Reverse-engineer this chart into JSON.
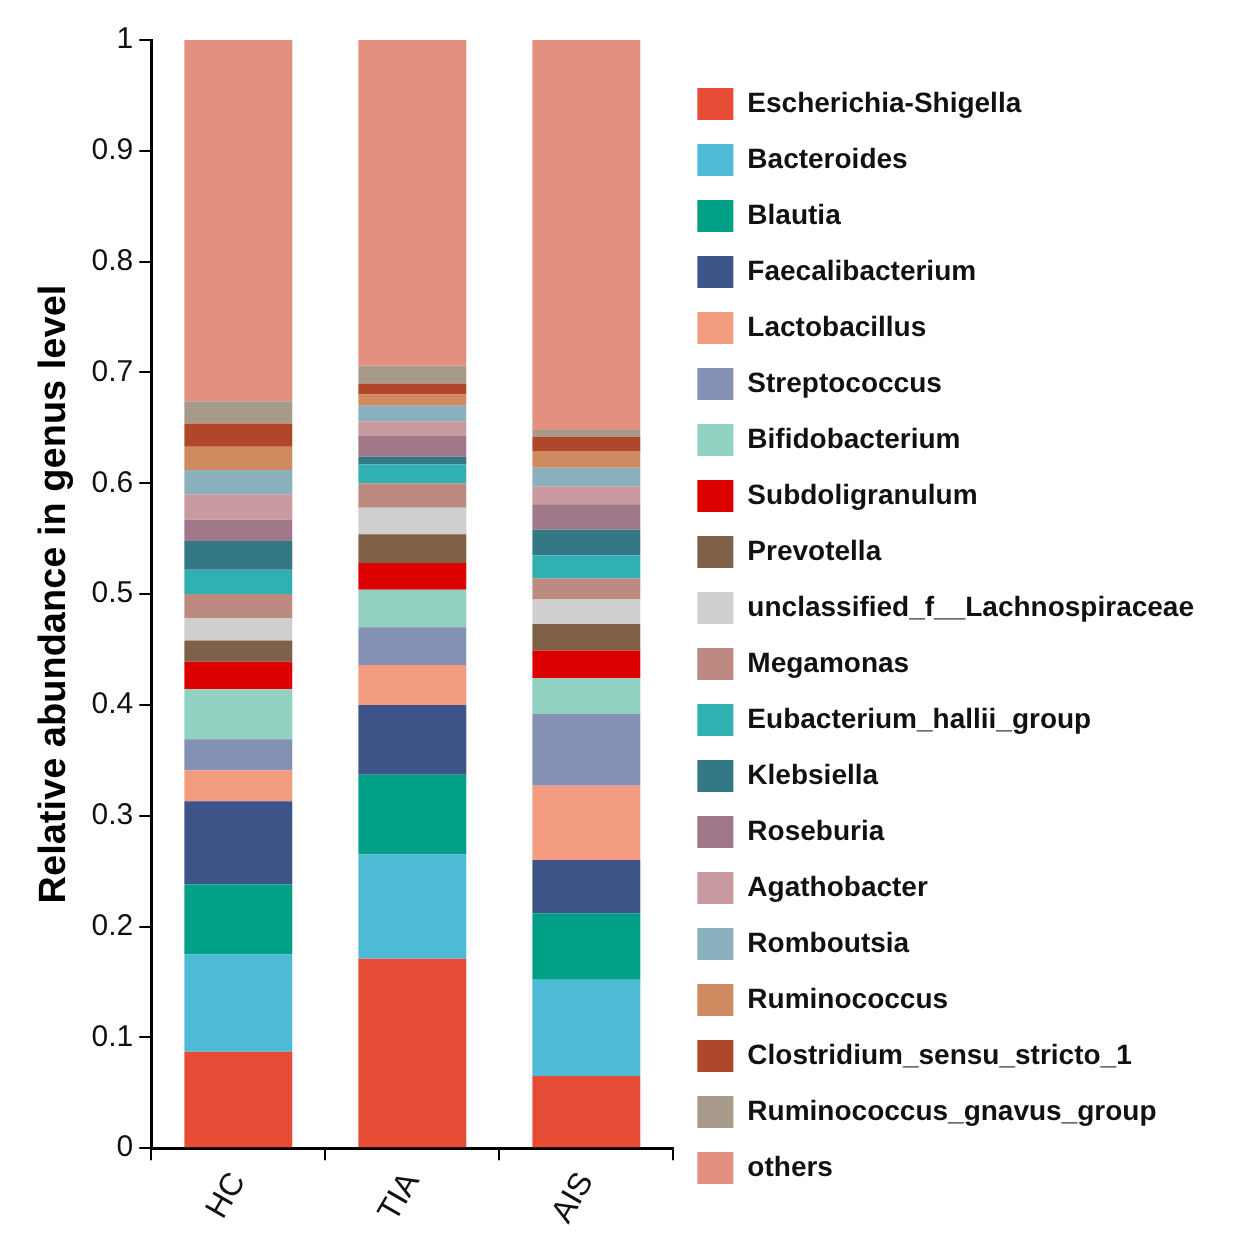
{
  "chart_data": {
    "type": "bar",
    "stacked": true,
    "ylabel": "Relative abundance in genus level",
    "categories": [
      "HC",
      "TIA",
      "AIS"
    ],
    "ylim": [
      0,
      1
    ],
    "yticks": [
      0,
      0.1,
      0.2,
      0.3,
      0.4,
      0.5,
      0.6,
      0.7,
      0.8,
      0.9,
      1
    ],
    "grid": false,
    "legend": "right",
    "series": [
      {
        "name": "Escherichia-Shigella",
        "color": "#e64b35",
        "values": [
          0.087,
          0.171,
          0.065
        ]
      },
      {
        "name": "Bacteroides",
        "color": "#4dbbd5",
        "values": [
          0.088,
          0.094,
          0.087
        ]
      },
      {
        "name": "Blautia",
        "color": "#00a087",
        "values": [
          0.063,
          0.072,
          0.06
        ]
      },
      {
        "name": "Faecalibacterium",
        "color": "#3c5488",
        "values": [
          0.075,
          0.063,
          0.048
        ]
      },
      {
        "name": "Lactobacillus",
        "color": "#f39b7f",
        "values": [
          0.028,
          0.036,
          0.067
        ]
      },
      {
        "name": "Streptococcus",
        "color": "#8491b4",
        "values": [
          0.028,
          0.034,
          0.065
        ]
      },
      {
        "name": "Bifidobacterium",
        "color": "#91d1c2",
        "values": [
          0.045,
          0.034,
          0.032
        ]
      },
      {
        "name": "Subdoligranulum",
        "color": "#dc0000",
        "values": [
          0.025,
          0.024,
          0.025
        ]
      },
      {
        "name": "Prevotella",
        "color": "#7e6148",
        "values": [
          0.019,
          0.026,
          0.024
        ]
      },
      {
        "name": "unclassified_f__Lachnospiraceae",
        "color": "#cfcfcf",
        "values": [
          0.02,
          0.024,
          0.022
        ]
      },
      {
        "name": "Megamonas",
        "color": "#bc8a80",
        "values": [
          0.022,
          0.022,
          0.019
        ]
      },
      {
        "name": "Eubacterium_hallii_group",
        "color": "#30b0b0",
        "values": [
          0.022,
          0.017,
          0.021
        ]
      },
      {
        "name": "Klebsiella",
        "color": "#347785",
        "values": [
          0.026,
          0.007,
          0.023
        ]
      },
      {
        "name": "Roseburia",
        "color": "#a0788a",
        "values": [
          0.019,
          0.019,
          0.023
        ]
      },
      {
        "name": "Agathobacter",
        "color": "#c89aa0",
        "values": [
          0.023,
          0.013,
          0.016
        ]
      },
      {
        "name": "Romboutsia",
        "color": "#8aafbd",
        "values": [
          0.022,
          0.014,
          0.017
        ]
      },
      {
        "name": "Ruminococcus",
        "color": "#d08a60",
        "values": [
          0.021,
          0.01,
          0.015
        ]
      },
      {
        "name": "Clostridium_sensu_stricto_1",
        "color": "#b0472a",
        "values": [
          0.021,
          0.01,
          0.013
        ]
      },
      {
        "name": "Ruminococcus_gnavus_group",
        "color": "#a89a8a",
        "values": [
          0.02,
          0.016,
          0.006
        ]
      },
      {
        "name": "others",
        "color": "#e39080",
        "values": [
          0.326,
          0.294,
          0.352
        ]
      }
    ]
  }
}
